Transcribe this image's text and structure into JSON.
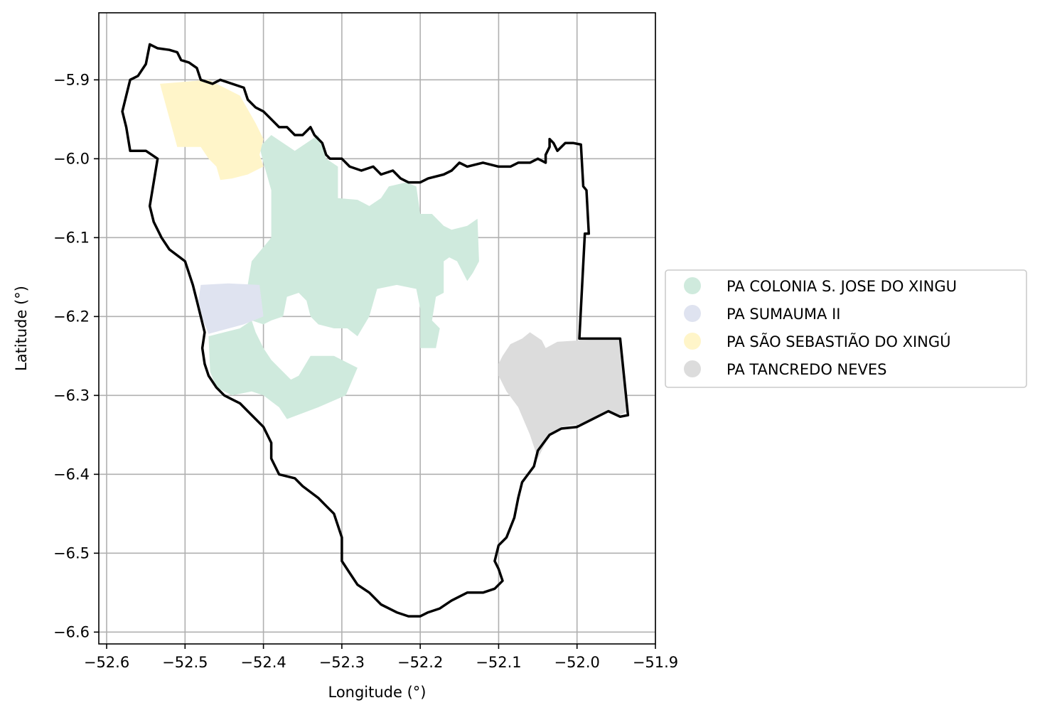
{
  "chart_data": {
    "type": "map",
    "xlabel": "Longitude (°)",
    "ylabel": "Latitude (°)",
    "xlim": [
      -52.61,
      -51.9
    ],
    "ylim": [
      -6.615,
      -5.815
    ],
    "grid": true,
    "legend_placement": "center-right outside",
    "x_ticks": [
      {
        "value": -52.6,
        "label": "−52.6"
      },
      {
        "value": -52.5,
        "label": "−52.5"
      },
      {
        "value": -52.4,
        "label": "−52.4"
      },
      {
        "value": -52.3,
        "label": "−52.3"
      },
      {
        "value": -52.2,
        "label": "−52.2"
      },
      {
        "value": -52.1,
        "label": "−52.1"
      },
      {
        "value": -52.0,
        "label": "−52.0"
      },
      {
        "value": -51.9,
        "label": "−51.9"
      }
    ],
    "y_ticks": [
      {
        "value": -5.9,
        "label": "−5.9"
      },
      {
        "value": -6.0,
        "label": "−6.0"
      },
      {
        "value": -6.1,
        "label": "−6.1"
      },
      {
        "value": -6.2,
        "label": "−6.2"
      },
      {
        "value": -6.3,
        "label": "−6.3"
      },
      {
        "value": -6.4,
        "label": "−6.4"
      },
      {
        "value": -6.5,
        "label": "−6.5"
      },
      {
        "value": -6.6,
        "label": "−6.6"
      }
    ],
    "series": [
      {
        "name": "PA COLONIA S. JOSE DO XINGU",
        "color": "#cfeadd",
        "polygons": [
          [
            [
              -52.39,
              -5.97
            ],
            [
              -52.36,
              -5.99
            ],
            [
              -52.33,
              -5.97
            ],
            [
              -52.32,
              -6.0
            ],
            [
              -52.305,
              -6.01
            ],
            [
              -52.305,
              -6.05
            ],
            [
              -52.28,
              -6.052
            ],
            [
              -52.265,
              -6.06
            ],
            [
              -52.25,
              -6.05
            ],
            [
              -52.24,
              -6.035
            ],
            [
              -52.218,
              -6.03
            ],
            [
              -52.205,
              -6.035
            ],
            [
              -52.2,
              -6.07
            ],
            [
              -52.185,
              -6.07
            ],
            [
              -52.17,
              -6.085
            ],
            [
              -52.16,
              -6.09
            ],
            [
              -52.14,
              -6.085
            ],
            [
              -52.127,
              -6.076
            ],
            [
              -52.125,
              -6.13
            ],
            [
              -52.133,
              -6.145
            ],
            [
              -52.14,
              -6.155
            ],
            [
              -52.153,
              -6.13
            ],
            [
              -52.163,
              -6.125
            ],
            [
              -52.17,
              -6.13
            ],
            [
              -52.17,
              -6.17
            ],
            [
              -52.18,
              -6.175
            ],
            [
              -52.185,
              -6.205
            ],
            [
              -52.175,
              -6.215
            ],
            [
              -52.18,
              -6.24
            ],
            [
              -52.2,
              -6.24
            ],
            [
              -52.2,
              -6.19
            ],
            [
              -52.205,
              -6.165
            ],
            [
              -52.23,
              -6.16
            ],
            [
              -52.255,
              -6.165
            ],
            [
              -52.265,
              -6.2
            ],
            [
              -52.28,
              -6.225
            ],
            [
              -52.293,
              -6.215
            ],
            [
              -52.31,
              -6.215
            ],
            [
              -52.33,
              -6.21
            ],
            [
              -52.34,
              -6.2
            ],
            [
              -52.345,
              -6.18
            ],
            [
              -52.355,
              -6.17
            ],
            [
              -52.37,
              -6.175
            ],
            [
              -52.375,
              -6.2
            ],
            [
              -52.39,
              -6.205
            ],
            [
              -52.4,
              -6.21
            ],
            [
              -52.415,
              -6.205
            ],
            [
              -52.43,
              -6.215
            ],
            [
              -52.45,
              -6.22
            ],
            [
              -52.47,
              -6.225
            ],
            [
              -52.468,
              -6.27
            ],
            [
              -52.46,
              -6.29
            ],
            [
              -52.44,
              -6.3
            ],
            [
              -52.415,
              -6.295
            ],
            [
              -52.4,
              -6.3
            ],
            [
              -52.38,
              -6.315
            ],
            [
              -52.37,
              -6.33
            ],
            [
              -52.33,
              -6.315
            ],
            [
              -52.295,
              -6.3
            ],
            [
              -52.28,
              -6.265
            ],
            [
              -52.31,
              -6.25
            ],
            [
              -52.34,
              -6.25
            ],
            [
              -52.355,
              -6.275
            ],
            [
              -52.365,
              -6.28
            ],
            [
              -52.38,
              -6.265
            ],
            [
              -52.39,
              -6.255
            ],
            [
              -52.4,
              -6.24
            ],
            [
              -52.41,
              -6.22
            ],
            [
              -52.42,
              -6.19
            ],
            [
              -52.42,
              -6.16
            ],
            [
              -52.415,
              -6.13
            ],
            [
              -52.39,
              -6.1
            ],
            [
              -52.39,
              -6.07
            ],
            [
              -52.39,
              -6.04
            ],
            [
              -52.4,
              -6.005
            ],
            [
              -52.405,
              -5.985
            ]
          ]
        ]
      },
      {
        "name": "PA SUMAUMA II",
        "color": "#dfe3f0",
        "polygons": [
          [
            [
              -52.48,
              -6.16
            ],
            [
              -52.445,
              -6.158
            ],
            [
              -52.405,
              -6.16
            ],
            [
              -52.4,
              -6.2
            ],
            [
              -52.425,
              -6.21
            ],
            [
              -52.455,
              -6.218
            ],
            [
              -52.47,
              -6.222
            ],
            [
              -52.477,
              -6.205
            ],
            [
              -52.483,
              -6.18
            ]
          ]
        ]
      },
      {
        "name": "PA SÃO SEBASTIÃO DO XINGÚ",
        "color": "#fff5c9",
        "polygons": [
          [
            [
              -52.532,
              -5.905
            ],
            [
              -52.47,
              -5.9
            ],
            [
              -52.45,
              -5.91
            ],
            [
              -52.43,
              -5.92
            ],
            [
              -52.41,
              -5.955
            ],
            [
              -52.4,
              -5.975
            ],
            [
              -52.405,
              -5.995
            ],
            [
              -52.4,
              -6.01
            ],
            [
              -52.42,
              -6.02
            ],
            [
              -52.44,
              -6.025
            ],
            [
              -52.455,
              -6.027
            ],
            [
              -52.46,
              -6.01
            ],
            [
              -52.47,
              -6.0
            ],
            [
              -52.48,
              -5.985
            ],
            [
              -52.51,
              -5.985
            ]
          ]
        ]
      },
      {
        "name": "PA TANCREDO NEVES",
        "color": "#dcdcdc",
        "polygons": [
          [
            [
              -52.085,
              -6.235
            ],
            [
              -52.07,
              -6.228
            ],
            [
              -52.06,
              -6.22
            ],
            [
              -52.045,
              -6.23
            ],
            [
              -52.04,
              -6.24
            ],
            [
              -52.025,
              -6.232
            ],
            [
              -51.995,
              -6.23
            ],
            [
              -51.955,
              -6.228
            ],
            [
              -51.945,
              -6.228
            ],
            [
              -51.935,
              -6.32
            ],
            [
              -51.945,
              -6.325
            ],
            [
              -51.96,
              -6.32
            ],
            [
              -51.99,
              -6.335
            ],
            [
              -52.02,
              -6.34
            ],
            [
              -52.035,
              -6.35
            ],
            [
              -52.045,
              -6.37
            ],
            [
              -52.05,
              -6.38
            ],
            [
              -52.06,
              -6.35
            ],
            [
              -52.075,
              -6.315
            ],
            [
              -52.09,
              -6.295
            ],
            [
              -52.1,
              -6.275
            ],
            [
              -52.1,
              -6.26
            ],
            [
              -52.095,
              -6.25
            ]
          ]
        ]
      }
    ],
    "boundary": {
      "name": "municipality boundary",
      "color": "#000000",
      "polygon": [
        [
          -52.545,
          -5.855
        ],
        [
          -52.535,
          -5.86
        ],
        [
          -52.52,
          -5.862
        ],
        [
          -52.51,
          -5.865
        ],
        [
          -52.505,
          -5.875
        ],
        [
          -52.495,
          -5.878
        ],
        [
          -52.485,
          -5.885
        ],
        [
          -52.48,
          -5.9
        ],
        [
          -52.465,
          -5.905
        ],
        [
          -52.455,
          -5.9
        ],
        [
          -52.44,
          -5.905
        ],
        [
          -52.425,
          -5.91
        ],
        [
          -52.42,
          -5.925
        ],
        [
          -52.41,
          -5.935
        ],
        [
          -52.4,
          -5.94
        ],
        [
          -52.39,
          -5.95
        ],
        [
          -52.38,
          -5.96
        ],
        [
          -52.37,
          -5.96
        ],
        [
          -52.36,
          -5.97
        ],
        [
          -52.35,
          -5.97
        ],
        [
          -52.34,
          -5.96
        ],
        [
          -52.335,
          -5.97
        ],
        [
          -52.325,
          -5.98
        ],
        [
          -52.32,
          -5.995
        ],
        [
          -52.315,
          -6.0
        ],
        [
          -52.3,
          -6.0
        ],
        [
          -52.29,
          -6.01
        ],
        [
          -52.275,
          -6.015
        ],
        [
          -52.26,
          -6.01
        ],
        [
          -52.25,
          -6.02
        ],
        [
          -52.235,
          -6.015
        ],
        [
          -52.225,
          -6.025
        ],
        [
          -52.215,
          -6.03
        ],
        [
          -52.2,
          -6.03
        ],
        [
          -52.19,
          -6.025
        ],
        [
          -52.17,
          -6.02
        ],
        [
          -52.16,
          -6.015
        ],
        [
          -52.15,
          -6.005
        ],
        [
          -52.14,
          -6.01
        ],
        [
          -52.12,
          -6.005
        ],
        [
          -52.1,
          -6.01
        ],
        [
          -52.085,
          -6.01
        ],
        [
          -52.075,
          -6.005
        ],
        [
          -52.06,
          -6.005
        ],
        [
          -52.05,
          -6.0
        ],
        [
          -52.04,
          -6.005
        ],
        [
          -52.04,
          -5.995
        ],
        [
          -52.035,
          -5.985
        ],
        [
          -52.035,
          -5.975
        ],
        [
          -52.03,
          -5.98
        ],
        [
          -52.025,
          -5.99
        ],
        [
          -52.015,
          -5.98
        ],
        [
          -52.005,
          -5.98
        ],
        [
          -51.995,
          -5.982
        ],
        [
          -51.992,
          -6.035
        ],
        [
          -51.988,
          -6.04
        ],
        [
          -51.985,
          -6.095
        ],
        [
          -51.99,
          -6.095
        ],
        [
          -51.997,
          -6.228
        ],
        [
          -51.945,
          -6.228
        ],
        [
          -51.935,
          -6.325
        ],
        [
          -51.945,
          -6.327
        ],
        [
          -51.96,
          -6.32
        ],
        [
          -51.98,
          -6.33
        ],
        [
          -52.0,
          -6.34
        ],
        [
          -52.02,
          -6.342
        ],
        [
          -52.035,
          -6.35
        ],
        [
          -52.05,
          -6.37
        ],
        [
          -52.055,
          -6.39
        ],
        [
          -52.07,
          -6.41
        ],
        [
          -52.075,
          -6.43
        ],
        [
          -52.08,
          -6.455
        ],
        [
          -52.09,
          -6.48
        ],
        [
          -52.1,
          -6.49
        ],
        [
          -52.105,
          -6.51
        ],
        [
          -52.1,
          -6.52
        ],
        [
          -52.095,
          -6.535
        ],
        [
          -52.105,
          -6.545
        ],
        [
          -52.12,
          -6.55
        ],
        [
          -52.14,
          -6.55
        ],
        [
          -52.16,
          -6.56
        ],
        [
          -52.175,
          -6.57
        ],
        [
          -52.19,
          -6.575
        ],
        [
          -52.2,
          -6.58
        ],
        [
          -52.215,
          -6.58
        ],
        [
          -52.23,
          -6.575
        ],
        [
          -52.25,
          -6.565
        ],
        [
          -52.265,
          -6.55
        ],
        [
          -52.28,
          -6.54
        ],
        [
          -52.29,
          -6.525
        ],
        [
          -52.3,
          -6.51
        ],
        [
          -52.3,
          -6.48
        ],
        [
          -52.31,
          -6.45
        ],
        [
          -52.32,
          -6.44
        ],
        [
          -52.33,
          -6.43
        ],
        [
          -52.35,
          -6.415
        ],
        [
          -52.36,
          -6.405
        ],
        [
          -52.38,
          -6.4
        ],
        [
          -52.39,
          -6.38
        ],
        [
          -52.39,
          -6.36
        ],
        [
          -52.4,
          -6.34
        ],
        [
          -52.41,
          -6.33
        ],
        [
          -52.42,
          -6.32
        ],
        [
          -52.43,
          -6.31
        ],
        [
          -52.44,
          -6.305
        ],
        [
          -52.45,
          -6.3
        ],
        [
          -52.46,
          -6.29
        ],
        [
          -52.47,
          -6.275
        ],
        [
          -52.475,
          -6.26
        ],
        [
          -52.478,
          -6.24
        ],
        [
          -52.475,
          -6.22
        ],
        [
          -52.48,
          -6.2
        ],
        [
          -52.485,
          -6.18
        ],
        [
          -52.49,
          -6.16
        ],
        [
          -52.5,
          -6.13
        ],
        [
          -52.52,
          -6.115
        ],
        [
          -52.53,
          -6.1
        ],
        [
          -52.54,
          -6.08
        ],
        [
          -52.545,
          -6.06
        ],
        [
          -52.54,
          -6.03
        ],
        [
          -52.535,
          -6.0
        ],
        [
          -52.55,
          -5.99
        ],
        [
          -52.57,
          -5.99
        ],
        [
          -52.575,
          -5.96
        ],
        [
          -52.58,
          -5.94
        ],
        [
          -52.575,
          -5.92
        ],
        [
          -52.57,
          -5.9
        ],
        [
          -52.56,
          -5.895
        ],
        [
          -52.55,
          -5.88
        ]
      ]
    },
    "legend": [
      "PA COLONIA S. JOSE DO XINGU",
      "PA SUMAUMA II",
      "PA SÃO SEBASTIÃO DO XINGÚ",
      "PA TANCREDO NEVES"
    ]
  }
}
